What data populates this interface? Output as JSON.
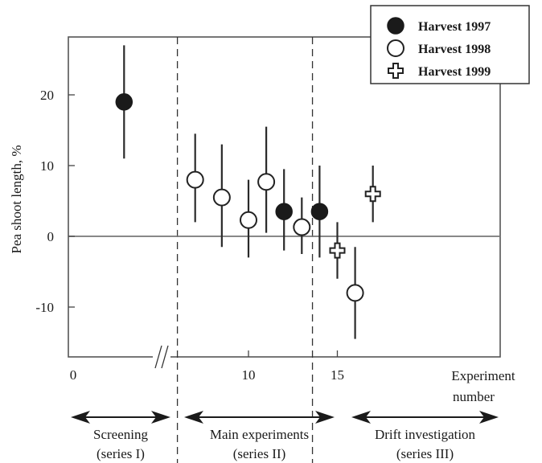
{
  "chart_data": {
    "type": "scatter",
    "ylabel": "Pea shoot length, %",
    "xlabel_line1": "Experiment",
    "xlabel_line2": "number",
    "xlim": [
      0,
      18
    ],
    "ylim": [
      -17,
      28
    ],
    "x_ticks": [
      0,
      10,
      15
    ],
    "y_ticks": [
      -10,
      0,
      10,
      20
    ],
    "axis_break_at": 5.5,
    "zero_line": true,
    "grid": false,
    "legend_position": "top-right",
    "dividers_x": [
      6,
      13.6
    ],
    "series": [
      {
        "name": "Harvest 1997",
        "marker": "filled-circle",
        "points": [
          {
            "x": 3,
            "y": 19,
            "low": 11,
            "high": 27
          },
          {
            "x": 12,
            "y": 3.5,
            "low": -2,
            "high": 9.5
          },
          {
            "x": 14,
            "y": 3.5,
            "low": -3,
            "high": 10
          }
        ]
      },
      {
        "name": "Harvest 1998",
        "marker": "open-circle",
        "points": [
          {
            "x": 7,
            "y": 8,
            "low": 2,
            "high": 14.5
          },
          {
            "x": 8.5,
            "y": 5.5,
            "low": -1.5,
            "high": 13
          },
          {
            "x": 10,
            "y": 2.3,
            "low": -3,
            "high": 8
          },
          {
            "x": 11,
            "y": 7.7,
            "low": 0.5,
            "high": 15.5
          },
          {
            "x": 13,
            "y": 1.3,
            "low": -2.5,
            "high": 5.5
          },
          {
            "x": 16,
            "y": -8,
            "low": -14.5,
            "high": -1.5
          }
        ]
      },
      {
        "name": "Harvest 1999",
        "marker": "open-cross",
        "points": [
          {
            "x": 15,
            "y": -2,
            "low": -6,
            "high": 2
          },
          {
            "x": 17,
            "y": 6,
            "low": 2,
            "high": 10
          }
        ]
      }
    ],
    "series_ranges": [
      {
        "label_line1": "Screening",
        "label_line2": "(series I)"
      },
      {
        "label_line1": "Main experiments",
        "label_line2": "(series II)"
      },
      {
        "label_line1": "Drift investigation",
        "label_line2": "(series III)"
      }
    ]
  }
}
